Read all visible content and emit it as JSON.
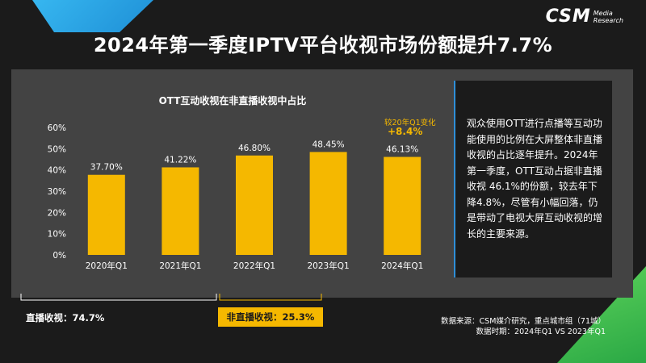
{
  "logo": {
    "main": "CSM",
    "sub_line1": "Media",
    "sub_line2": "Research"
  },
  "title": "2024年第一季度IPTV平台收视市场份额提升7.7%",
  "chart_data": {
    "type": "bar",
    "title": "OTT互动收视在非直播收视中占比",
    "categories": [
      "2020年Q1",
      "2021年Q1",
      "2022年Q1",
      "2023年Q1",
      "2024年Q1"
    ],
    "values": [
      37.7,
      41.22,
      46.8,
      48.45,
      46.13
    ],
    "value_labels": [
      "37.70%",
      "41.22%",
      "46.80%",
      "48.45%",
      "46.13%"
    ],
    "y_ticks": [
      "0%",
      "10%",
      "20%",
      "30%",
      "40%",
      "50%",
      "60%"
    ],
    "ylim": [
      0,
      60
    ],
    "annotation": {
      "label": "较20年Q1变化",
      "value": "+8.4%"
    },
    "bar_color": "#f5b800"
  },
  "note": "观众使用OTT进行点播等互动功能使用的比例在大屏整体非直播收视的占比逐年提升。2024年第一季度，OTT互动占据非直播收视 46.1%的份额，较去年下降4.8%，尽管有小幅回落，仍是带动了电视大屏互动收视的增长的主要来源。",
  "bottom": {
    "live_label": "直播收视：74.7%",
    "nonlive_label": "非直播收视：25.3%"
  },
  "source": {
    "line1": "数据来源：CSM媒介研究，重点城市组（71城）",
    "line2": "数据时期：2024年Q1 VS 2023年Q1"
  },
  "colors": {
    "accent_yellow": "#f5b800",
    "accent_blue": "#2f8fd8",
    "accent_green": "#3cbc4b",
    "panel_gray": "#434343",
    "background": "#1b1b1b"
  }
}
